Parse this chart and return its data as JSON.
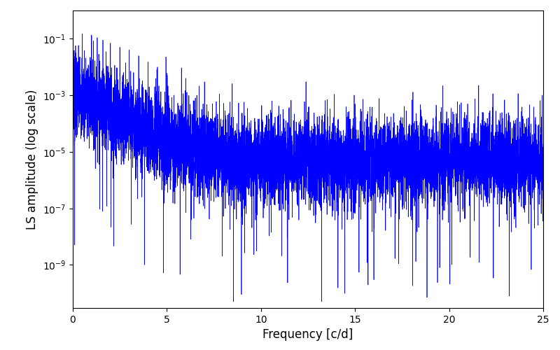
{
  "title": "",
  "xlabel": "Frequency [c/d]",
  "ylabel": "LS amplitude (log scale)",
  "line_color": "#0000ff",
  "line_width": 0.5,
  "xlim": [
    0,
    25
  ],
  "ylim": [
    3e-11,
    1.0
  ],
  "yscale": "log",
  "figsize": [
    8.0,
    5.0
  ],
  "dpi": 100,
  "background_color": "#ffffff",
  "n_points": 8000,
  "seed": 7
}
